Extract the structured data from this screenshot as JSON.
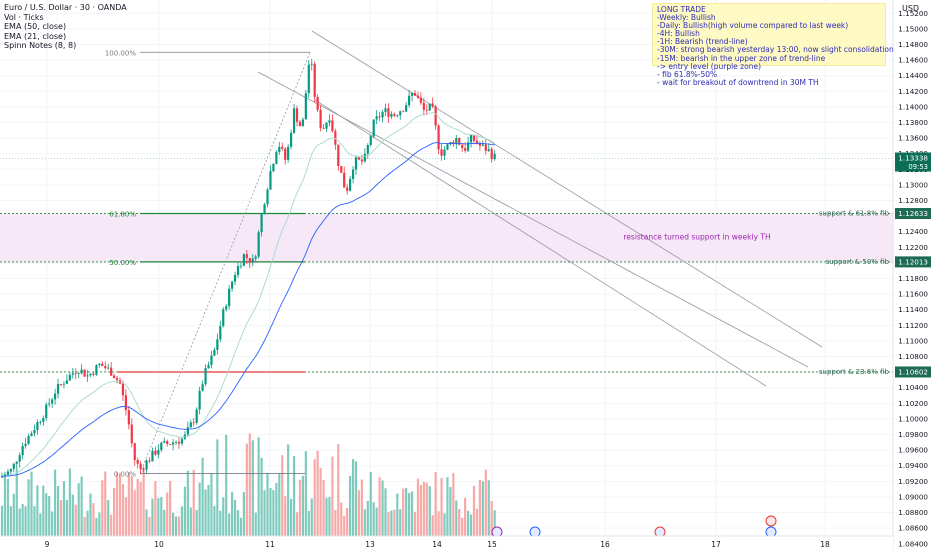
{
  "legend": {
    "title": "Euro / U.S. Dollar · 30 · OANDA",
    "vol": "Vol · Ticks",
    "ema50": "EMA (50, close)",
    "ema21": "EMA (21, close)",
    "notes": "Spinn Notes (8, 8)"
  },
  "note": {
    "lines": [
      "LONG TRADE",
      "-Weekly: Bullish",
      "-Daily: Bullish(high volume compared to last week)",
      "-4H: Bullish",
      "-1H: Bearish (trend-line)",
      "-30M: strong bearish yesterday 13:00, now slight consolidation",
      "-15M: bearish in the upper zone of trend-line",
      "-> entry level (purple zone)",
      "- fib 61.8%-50%",
      "- wait for breakout of downtrend in 30M TH"
    ]
  },
  "axis": {
    "currency": "USD",
    "price_ticks": [
      "1.15200",
      "1.15000",
      "1.14800",
      "1.14600",
      "1.14400",
      "1.14200",
      "1.14000",
      "1.13800",
      "1.13600",
      "1.13400",
      "1.13200",
      "1.13000",
      "1.12800",
      "1.12600",
      "1.12400",
      "1.12200",
      "1.12000",
      "1.11800",
      "1.11600",
      "1.11400",
      "1.11200",
      "1.11000",
      "1.10800",
      "1.10600",
      "1.10400",
      "1.10200",
      "1.10000",
      "1.09800",
      "1.09600",
      "1.09400",
      "1.09200",
      "1.09000",
      "1.08800",
      "1.08600",
      "1.08400"
    ],
    "date_ticks": [
      "9",
      "10",
      "11",
      "13",
      "14",
      "15",
      "16",
      "17",
      "18"
    ]
  },
  "price_tags": {
    "current": {
      "price": "1.13338",
      "countdown": "09:53"
    },
    "fib618": "1.12633",
    "fib50": "1.12013",
    "fib236": "1.10602"
  },
  "annotations": {
    "support_618": "support & 61.8% fib",
    "support_50": "support & 50% fib",
    "support_236": "support & 23.6% fib",
    "zone": "resistance turned support in weekly TH",
    "fib_100": "100.00%",
    "fib_618": "61.80%",
    "fib_50": "50.00%",
    "fib_0": "0.00%"
  },
  "colors": {
    "up": "#089981",
    "down": "#f23645",
    "vol_up": "#7ecbbd",
    "vol_down": "#f7a9a7",
    "ema50": "#2962ff",
    "ema21": "#a7d8c8",
    "zone": "#f6e8f7",
    "note_text": "#2c2cb5",
    "fib_level": "#22863a",
    "tag_bg": "#1e6b55"
  },
  "chart_data": {
    "type": "candlestick",
    "title": "Euro / U.S. Dollar · 30 · OANDA",
    "xlabel": "",
    "ylabel": "",
    "ylim": [
      1.0832,
      1.1537
    ],
    "price_levels": {
      "fib_618": 1.12633,
      "fib_50": 1.12013,
      "fib_236": 1.10602,
      "fib_100": 1.147,
      "fib_0": 1.093,
      "current": 1.13338
    },
    "zone": [
      1.12013,
      1.12633
    ],
    "downtrend_channel": "descending parallel lines from the 1.147 high through 18th",
    "indicators": [
      "EMA 50",
      "EMA 21",
      "Volume"
    ]
  }
}
